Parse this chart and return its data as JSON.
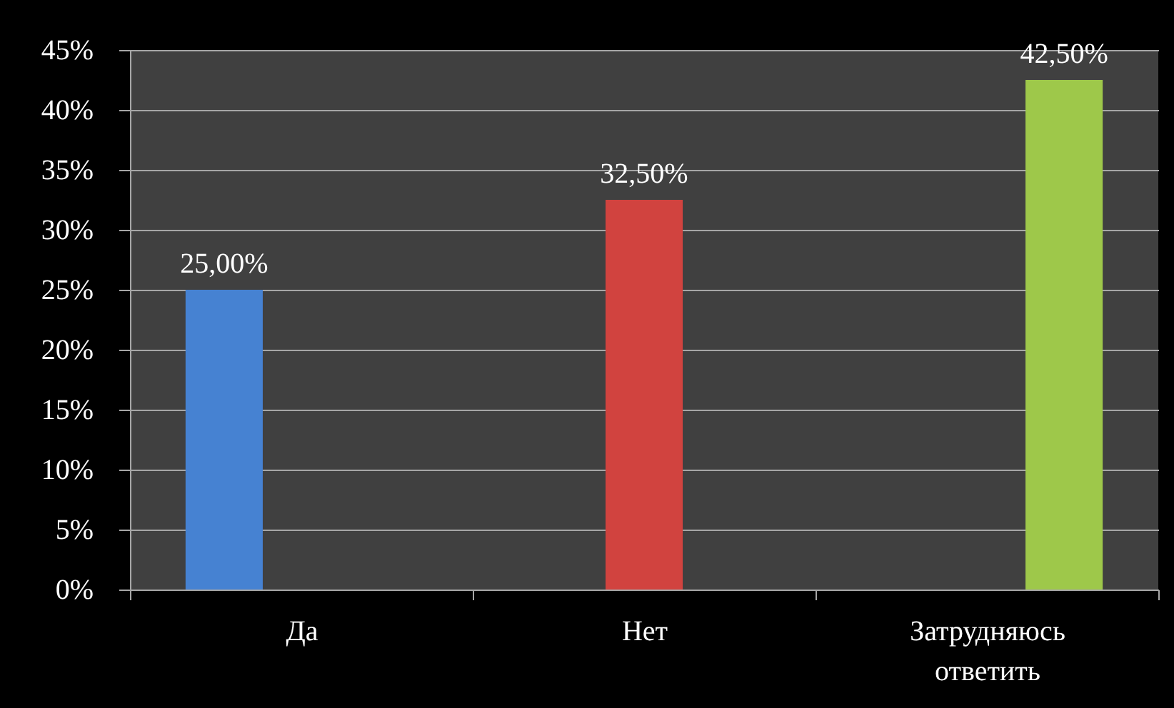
{
  "chart_data": {
    "type": "bar",
    "categories": [
      "Да",
      "Нет",
      "Затрудняюсь ответить"
    ],
    "series": [
      {
        "color": "#4682d2",
        "values": [
          25,
          null,
          null
        ],
        "value_labels": [
          "25,00%",
          null,
          null
        ]
      },
      {
        "color": "#d1433f",
        "values": [
          null,
          32.5,
          null
        ],
        "value_labels": [
          null,
          "32,50%",
          null
        ]
      },
      {
        "color": "#9ec84a",
        "values": [
          null,
          null,
          42.5
        ],
        "value_labels": [
          null,
          null,
          "42,50%"
        ]
      }
    ],
    "ylim": [
      0,
      45
    ],
    "yticks": [
      {
        "value": 0,
        "label": "0%"
      },
      {
        "value": 5,
        "label": "5%"
      },
      {
        "value": 10,
        "label": "10%"
      },
      {
        "value": 15,
        "label": "15%"
      },
      {
        "value": 20,
        "label": "20%"
      },
      {
        "value": 25,
        "label": "25%"
      },
      {
        "value": 30,
        "label": "30%"
      },
      {
        "value": 35,
        "label": "35%"
      },
      {
        "value": 40,
        "label": "40%"
      },
      {
        "value": 45,
        "label": "45%"
      }
    ],
    "grid": "y"
  }
}
